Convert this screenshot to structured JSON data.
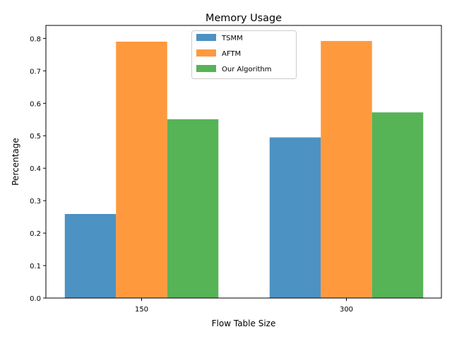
{
  "chart_data": {
    "type": "bar",
    "title": "Memory Usage",
    "xlabel": "Flow Table Size",
    "ylabel": "Percentage",
    "categories": [
      "150",
      "300"
    ],
    "series": [
      {
        "name": "TSMM",
        "values": [
          0.259,
          0.495
        ],
        "color": "#1f77b4"
      },
      {
        "name": "AFTM",
        "values": [
          0.79,
          0.792
        ],
        "color": "#ff7f0e"
      },
      {
        "name": "Our Algorithm",
        "values": [
          0.551,
          0.572
        ],
        "color": "#2ca02c"
      }
    ],
    "ylim": [
      0,
      0.84
    ],
    "yticks": [
      "0.0",
      "0.1",
      "0.2",
      "0.3",
      "0.4",
      "0.5",
      "0.6",
      "0.7",
      "0.8"
    ],
    "bar_opacity": 0.8,
    "grid": false,
    "legend_position": "top-center"
  }
}
